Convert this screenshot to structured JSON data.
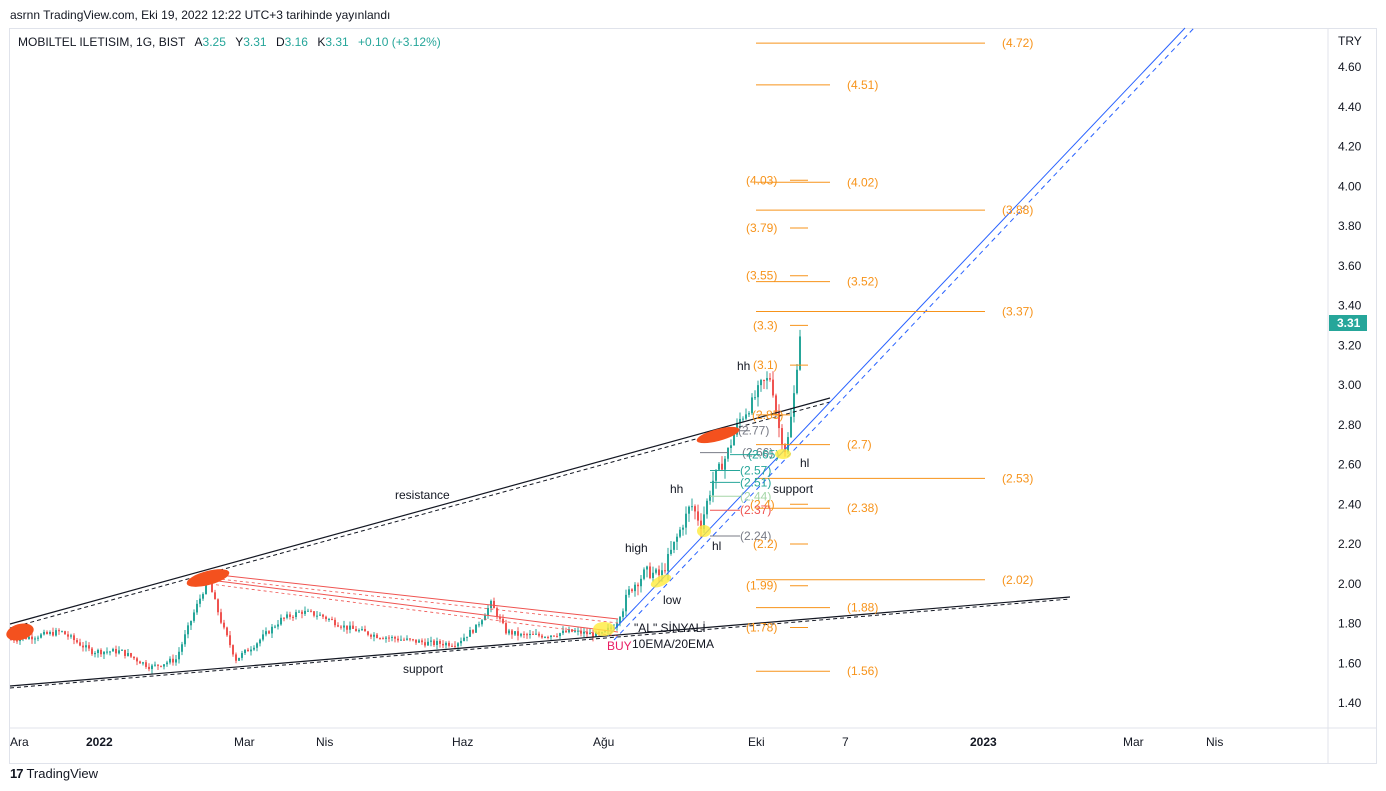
{
  "caption": "asrnn TradingView.com, Eki 19, 2022 12:22 UTC+3 tarihinde yayınlandı",
  "symbol": {
    "name": "MOBILTEL ILETISIM, 1G, BIST",
    "open_label": "A",
    "open": "3.25",
    "high_label": "Y",
    "high": "3.31",
    "low_label": "D",
    "low": "3.16",
    "close_label": "K",
    "close": "3.31",
    "change": "+0.10 (+3.12%)"
  },
  "footer": {
    "logo_mark": "17",
    "logo_text": "TradingView"
  },
  "colors": {
    "up": "#26a69a",
    "down": "#ef5350",
    "fib": "#f7931a",
    "channel": "#2962ff",
    "trend": "#131722",
    "fan": "#ef5350",
    "ellipse": "#f4511e",
    "buy": "#e91e63",
    "price_badge": "#26a69a"
  },
  "chart_data": {
    "type": "candlestick",
    "currency": "TRY",
    "last_price": "3.31",
    "y_ticks": [
      "4.60",
      "4.40",
      "4.20",
      "4.00",
      "3.80",
      "3.60",
      "3.40",
      "3.20",
      "3.00",
      "2.80",
      "2.60",
      "2.40",
      "2.20",
      "2.00",
      "1.80",
      "1.60",
      "1.40"
    ],
    "x_ticks": [
      "Ara",
      "2022",
      "Mar",
      "Nis",
      "Haz",
      "Ağu",
      "Eki",
      "7",
      "2023",
      "Mar",
      "Nis"
    ],
    "fib_levels": [
      "(4.72)",
      "(4.51)",
      "(4.03)",
      "(4.02)",
      "(3.88)",
      "(3.79)",
      "(3.55)",
      "(3.52)",
      "(3.37)",
      "(3.3)",
      "(3.1)",
      "(2.85)",
      "(2.77)",
      "(2.7)",
      "(2.66)",
      "(2.65)",
      "(2.57)",
      "(2.53)",
      "(2.51)",
      "(2.44)",
      "(2.4)",
      "(2.38)",
      "(2.37)",
      "(2.24)",
      "(2.2)",
      "(2.02)",
      "(1.99)",
      "(1.88)",
      "(1.78)",
      "(1.56)"
    ],
    "annotations": {
      "resistance": "resistance",
      "support_left": "support",
      "support_right": "support",
      "high": "high",
      "hh1": "hh",
      "hh2": "hh",
      "low": "low",
      "hl1": "hl",
      "hl2": "hl",
      "al_signal": "\"AL\" SİNYALİ",
      "buy": "BUY",
      "ema": "10EMA/20EMA"
    }
  }
}
